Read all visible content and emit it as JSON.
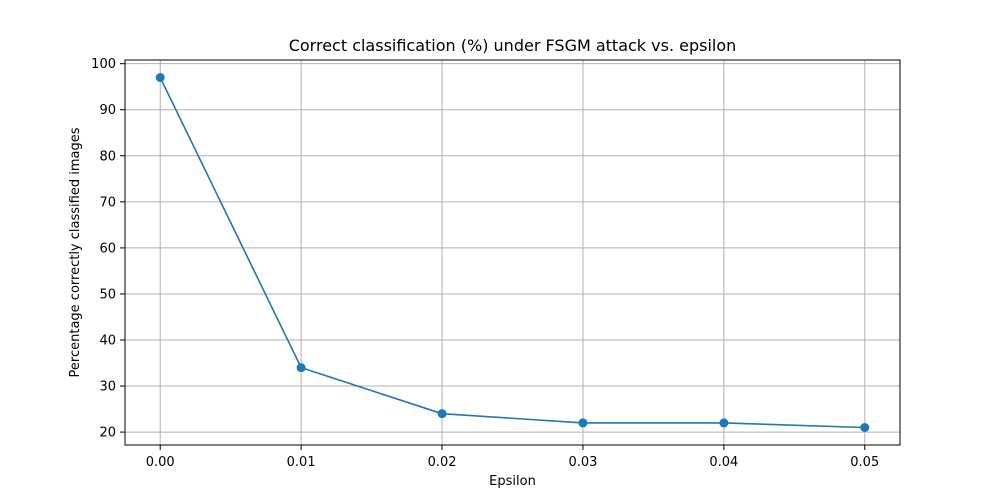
{
  "chart_data": {
    "type": "line",
    "title": "Correct classification (%) under FSGM attack vs. epsilon",
    "xlabel": "Epsilon",
    "ylabel": "Percentage correctly classified images",
    "x": [
      0.0,
      0.01,
      0.02,
      0.03,
      0.04,
      0.05
    ],
    "series": [
      {
        "values": [
          97,
          34,
          24,
          22,
          22,
          21
        ],
        "color": "#1f77b4",
        "marker": "circle"
      }
    ],
    "xticks": [
      "0.00",
      "0.01",
      "0.02",
      "0.03",
      "0.04",
      "0.05"
    ],
    "yticks": [
      "20",
      "30",
      "40",
      "50",
      "60",
      "70",
      "80",
      "90",
      "100"
    ],
    "xlim": [
      -0.0025,
      0.0525
    ],
    "ylim": [
      17.2,
      100.8
    ],
    "grid": true,
    "colors": {
      "line": "#1f77b4",
      "grid": "#b0b0b0",
      "axes": "#000000"
    }
  }
}
